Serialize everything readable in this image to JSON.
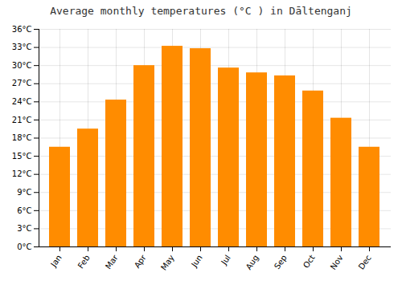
{
  "chart_data": {
    "type": "bar",
    "title": "Average monthly temperatures (°C ) in Dāltenganj",
    "categories": [
      "Jan",
      "Feb",
      "Mar",
      "Apr",
      "May",
      "Jun",
      "Jul",
      "Aug",
      "Sep",
      "Oct",
      "Nov",
      "Dec"
    ],
    "values": [
      16.5,
      19.5,
      24.3,
      30.0,
      33.2,
      32.8,
      29.6,
      28.8,
      28.3,
      25.8,
      21.3,
      16.5
    ],
    "color": "#FF8C00",
    "ylim": [
      0,
      36
    ],
    "yticks": [
      {
        "value": 0,
        "label": "0°C"
      },
      {
        "value": 3,
        "label": "3°C"
      },
      {
        "value": 6,
        "label": "6°C"
      },
      {
        "value": 9,
        "label": "9°C"
      },
      {
        "value": 12,
        "label": "12°C"
      },
      {
        "value": 15,
        "label": "15°C"
      },
      {
        "value": 18,
        "label": "18°C"
      },
      {
        "value": 21,
        "label": "21°C"
      },
      {
        "value": 24,
        "label": "24°C"
      },
      {
        "value": 27,
        "label": "27°C"
      },
      {
        "value": 30,
        "label": "30°C"
      },
      {
        "value": 33,
        "label": "33°C"
      },
      {
        "value": 36,
        "label": "36°C"
      }
    ],
    "grid": true
  }
}
